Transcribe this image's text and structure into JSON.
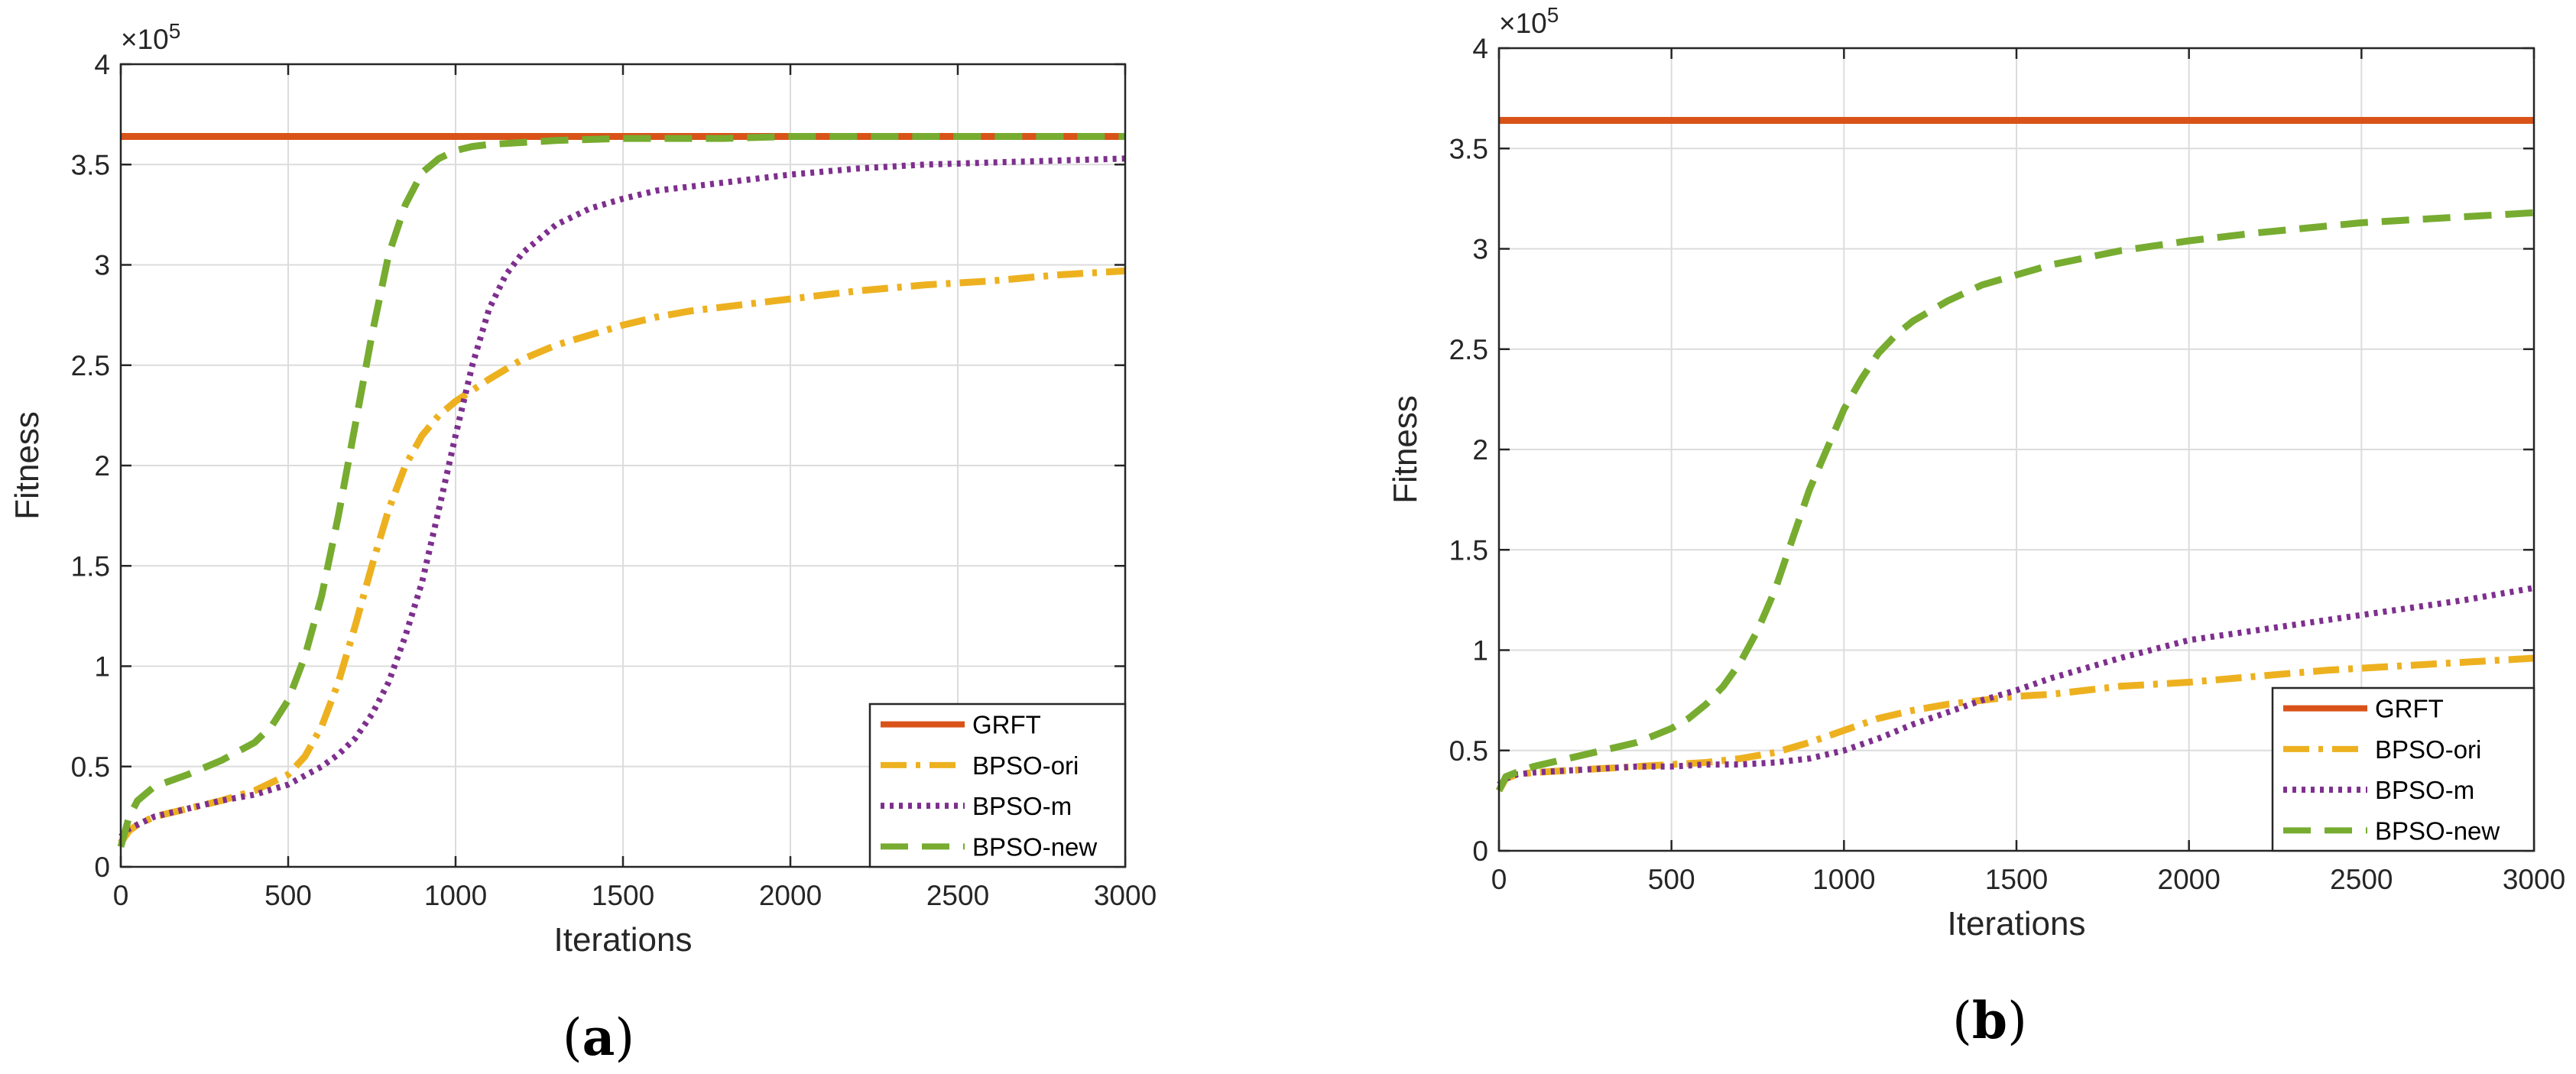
{
  "chart_data": [
    {
      "type": "line",
      "panel_label": {
        "open": "(",
        "letter": "a",
        "close": ")"
      },
      "xlabel": "Iterations",
      "ylabel": "Fitness",
      "exponent_label": {
        "base": "×10",
        "exp": "5"
      },
      "xlim": [
        0,
        3000
      ],
      "ylim": [
        0,
        4
      ],
      "xticks": [
        0,
        500,
        1000,
        1500,
        2000,
        2500,
        3000
      ],
      "xtick_labels": [
        "0",
        "500",
        "1000",
        "1500",
        "2000",
        "2500",
        "3000"
      ],
      "yticks": [
        0,
        0.5,
        1,
        1.5,
        2,
        2.5,
        3,
        3.5,
        4
      ],
      "ytick_labels": [
        "0",
        "0.5",
        "1",
        "1.5",
        "2",
        "2.5",
        "3",
        "3.5",
        "4"
      ],
      "grid": true,
      "legend_position": "bottom-right",
      "series": [
        {
          "name": "GRFT",
          "color": "#D95319",
          "dash": "solid",
          "x": [
            0,
            3000
          ],
          "y": [
            3.64,
            3.64
          ]
        },
        {
          "name": "BPSO-ori",
          "color": "#EDB120",
          "dash": "dashdot",
          "x": [
            0,
            25,
            50,
            100,
            200,
            300,
            400,
            500,
            550,
            600,
            650,
            700,
            750,
            800,
            850,
            900,
            950,
            1000,
            1100,
            1200,
            1300,
            1400,
            1500,
            1600,
            1700,
            1800,
            2000,
            2200,
            2400,
            2600,
            2800,
            3000
          ],
          "y": [
            0.12,
            0.18,
            0.21,
            0.25,
            0.29,
            0.33,
            0.38,
            0.46,
            0.55,
            0.7,
            0.92,
            1.2,
            1.5,
            1.78,
            2.0,
            2.15,
            2.25,
            2.32,
            2.43,
            2.53,
            2.6,
            2.65,
            2.7,
            2.74,
            2.77,
            2.79,
            2.83,
            2.87,
            2.9,
            2.92,
            2.95,
            2.97
          ]
        },
        {
          "name": "BPSO-m",
          "color": "#7E2F8E",
          "dash": "dotted",
          "x": [
            0,
            25,
            50,
            100,
            200,
            300,
            400,
            500,
            600,
            650,
            700,
            750,
            800,
            850,
            900,
            950,
            1000,
            1050,
            1100,
            1150,
            1200,
            1300,
            1400,
            1500,
            1600,
            1800,
            2000,
            2200,
            2400,
            2600,
            2800,
            3000
          ],
          "y": [
            0.15,
            0.19,
            0.21,
            0.25,
            0.29,
            0.33,
            0.36,
            0.41,
            0.5,
            0.56,
            0.64,
            0.76,
            0.92,
            1.15,
            1.42,
            1.78,
            2.15,
            2.5,
            2.78,
            2.95,
            3.06,
            3.2,
            3.28,
            3.33,
            3.37,
            3.41,
            3.45,
            3.48,
            3.5,
            3.51,
            3.52,
            3.53
          ]
        },
        {
          "name": "BPSO-new",
          "color": "#77AC30",
          "dash": "dashed",
          "x": [
            0,
            25,
            50,
            100,
            200,
            300,
            400,
            450,
            500,
            550,
            600,
            650,
            700,
            750,
            800,
            850,
            900,
            950,
            1000,
            1050,
            1100,
            1200,
            1300,
            1500,
            1800,
            2000,
            2500,
            3000
          ],
          "y": [
            0.1,
            0.25,
            0.33,
            0.4,
            0.46,
            0.53,
            0.62,
            0.7,
            0.83,
            1.05,
            1.35,
            1.75,
            2.2,
            2.65,
            3.05,
            3.3,
            3.46,
            3.53,
            3.57,
            3.59,
            3.6,
            3.61,
            3.62,
            3.63,
            3.63,
            3.64,
            3.64,
            3.64
          ]
        }
      ]
    },
    {
      "type": "line",
      "panel_label": {
        "open": "(",
        "letter": "b",
        "close": ")"
      },
      "xlabel": "Iterations",
      "ylabel": "Fitness",
      "exponent_label": {
        "base": "×10",
        "exp": "5"
      },
      "xlim": [
        0,
        3000
      ],
      "ylim": [
        0,
        4
      ],
      "xticks": [
        0,
        500,
        1000,
        1500,
        2000,
        2500,
        3000
      ],
      "xtick_labels": [
        "0",
        "500",
        "1000",
        "1500",
        "2000",
        "2500",
        "3000"
      ],
      "yticks": [
        0,
        0.5,
        1,
        1.5,
        2,
        2.5,
        3,
        3.5,
        4
      ],
      "ytick_labels": [
        "0",
        "0.5",
        "1",
        "1.5",
        "2",
        "2.5",
        "3",
        "3.5",
        "4"
      ],
      "grid": true,
      "legend_position": "bottom-right",
      "series": [
        {
          "name": "GRFT",
          "color": "#D95319",
          "dash": "solid",
          "x": [
            0,
            3000
          ],
          "y": [
            3.64,
            3.64
          ]
        },
        {
          "name": "BPSO-ori",
          "color": "#EDB120",
          "dash": "dashdot",
          "x": [
            0,
            20,
            50,
            100,
            200,
            300,
            400,
            500,
            600,
            700,
            800,
            900,
            1000,
            1100,
            1200,
            1300,
            1400,
            1500,
            1600,
            1800,
            2000,
            2200,
            2400,
            2600,
            2800,
            3000
          ],
          "y": [
            0.3,
            0.36,
            0.38,
            0.39,
            0.4,
            0.41,
            0.42,
            0.43,
            0.44,
            0.46,
            0.49,
            0.54,
            0.6,
            0.66,
            0.7,
            0.73,
            0.75,
            0.77,
            0.78,
            0.82,
            0.84,
            0.87,
            0.9,
            0.92,
            0.94,
            0.96
          ]
        },
        {
          "name": "BPSO-m",
          "color": "#7E2F8E",
          "dash": "dotted",
          "x": [
            0,
            20,
            50,
            100,
            200,
            300,
            400,
            500,
            600,
            700,
            800,
            900,
            1000,
            1100,
            1200,
            1300,
            1400,
            1500,
            1600,
            1700,
            1800,
            2000,
            2200,
            2400,
            2600,
            2800,
            3000
          ],
          "y": [
            0.33,
            0.36,
            0.38,
            0.39,
            0.4,
            0.41,
            0.42,
            0.42,
            0.43,
            0.43,
            0.44,
            0.46,
            0.5,
            0.56,
            0.63,
            0.69,
            0.75,
            0.8,
            0.86,
            0.91,
            0.96,
            1.05,
            1.1,
            1.15,
            1.2,
            1.25,
            1.31
          ]
        },
        {
          "name": "BPSO-new",
          "color": "#77AC30",
          "dash": "dashed",
          "x": [
            0,
            20,
            50,
            100,
            200,
            300,
            400,
            500,
            550,
            600,
            650,
            700,
            750,
            800,
            850,
            900,
            950,
            1000,
            1050,
            1100,
            1150,
            1200,
            1300,
            1400,
            1500,
            1600,
            1800,
            2000,
            2200,
            2500,
            2800,
            3000
          ],
          "y": [
            0.3,
            0.37,
            0.39,
            0.42,
            0.46,
            0.5,
            0.54,
            0.61,
            0.66,
            0.73,
            0.82,
            0.94,
            1.1,
            1.3,
            1.55,
            1.8,
            2.0,
            2.2,
            2.35,
            2.48,
            2.57,
            2.64,
            2.74,
            2.82,
            2.87,
            2.92,
            2.99,
            3.04,
            3.08,
            3.13,
            3.16,
            3.18
          ]
        }
      ]
    }
  ]
}
